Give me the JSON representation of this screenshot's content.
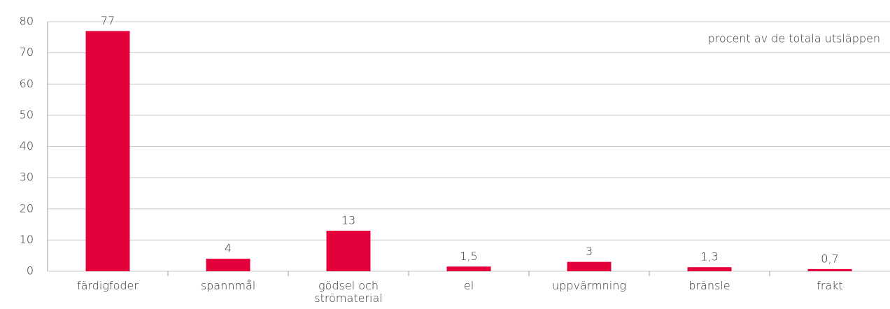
{
  "chart_data": {
    "type": "bar",
    "annotation": "procent av de totala utsläppen",
    "categories": [
      "färdigfoder",
      "spannmål",
      "gödsel och strömaterial",
      "el",
      "uppvärmning",
      "bränsle",
      "frakt"
    ],
    "values": [
      77,
      4,
      13,
      1.5,
      3,
      1.3,
      0.7
    ],
    "value_labels": [
      "77",
      "4",
      "13",
      "1,5",
      "3",
      "1,3",
      "0,7"
    ],
    "color": "#e4003b",
    "ylim": [
      0,
      80
    ],
    "yticks": [
      0,
      10,
      20,
      30,
      40,
      50,
      60,
      70,
      80
    ],
    "grid": true
  }
}
